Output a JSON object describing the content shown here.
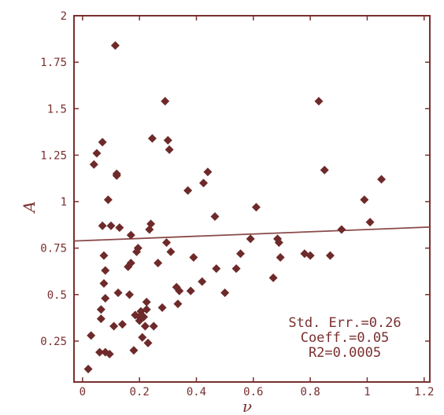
{
  "chart_data": {
    "type": "scatter",
    "xlabel": "ν",
    "ylabel": "A",
    "xlim": [
      -0.03,
      1.22
    ],
    "ylim": [
      0.03,
      2.0
    ],
    "xticks": [
      0,
      0.2,
      0.4,
      0.6,
      0.8,
      1,
      1.2
    ],
    "xtick_labels": [
      "0",
      "0.2",
      "0.4",
      "0.6",
      "0.8",
      "1",
      "1.2"
    ],
    "yticks": [
      0.25,
      0.5,
      0.75,
      1,
      1.25,
      1.5,
      1.75,
      2
    ],
    "ytick_labels": [
      "0.25",
      "0.5",
      "0.75",
      "1",
      "1.25",
      "1.5",
      "1.75",
      "2"
    ],
    "grid": false,
    "colors": {
      "points": "#6e2a2a",
      "line": "#8a4a4a",
      "frame": "#7a2f2f",
      "text": "#7a2f2f"
    },
    "points": [
      [
        0.02,
        0.1
      ],
      [
        0.03,
        0.28
      ],
      [
        0.04,
        1.2
      ],
      [
        0.05,
        1.26
      ],
      [
        0.06,
        0.19
      ],
      [
        0.065,
        0.42
      ],
      [
        0.065,
        0.37
      ],
      [
        0.07,
        1.32
      ],
      [
        0.07,
        0.87
      ],
      [
        0.075,
        0.56
      ],
      [
        0.075,
        0.71
      ],
      [
        0.08,
        0.63
      ],
      [
        0.08,
        0.48
      ],
      [
        0.08,
        0.19
      ],
      [
        0.09,
        1.01
      ],
      [
        0.095,
        0.18
      ],
      [
        0.1,
        0.87
      ],
      [
        0.11,
        0.33
      ],
      [
        0.115,
        1.84
      ],
      [
        0.12,
        1.15
      ],
      [
        0.12,
        1.14
      ],
      [
        0.125,
        0.51
      ],
      [
        0.13,
        0.86
      ],
      [
        0.14,
        0.34
      ],
      [
        0.16,
        0.65
      ],
      [
        0.165,
        0.5
      ],
      [
        0.17,
        0.67
      ],
      [
        0.17,
        0.82
      ],
      [
        0.18,
        0.2
      ],
      [
        0.185,
        0.39
      ],
      [
        0.19,
        0.73
      ],
      [
        0.195,
        0.75
      ],
      [
        0.2,
        0.38
      ],
      [
        0.2,
        0.36
      ],
      [
        0.205,
        0.41
      ],
      [
        0.21,
        0.27
      ],
      [
        0.215,
        0.38
      ],
      [
        0.22,
        0.33
      ],
      [
        0.225,
        0.42
      ],
      [
        0.225,
        0.46
      ],
      [
        0.23,
        0.24
      ],
      [
        0.235,
        0.85
      ],
      [
        0.24,
        0.88
      ],
      [
        0.245,
        1.34
      ],
      [
        0.25,
        0.33
      ],
      [
        0.265,
        0.67
      ],
      [
        0.28,
        0.43
      ],
      [
        0.29,
        1.54
      ],
      [
        0.295,
        0.78
      ],
      [
        0.3,
        1.33
      ],
      [
        0.305,
        1.28
      ],
      [
        0.31,
        0.73
      ],
      [
        0.33,
        0.54
      ],
      [
        0.335,
        0.45
      ],
      [
        0.34,
        0.52
      ],
      [
        0.37,
        1.06
      ],
      [
        0.38,
        0.52
      ],
      [
        0.39,
        0.7
      ],
      [
        0.42,
        0.57
      ],
      [
        0.425,
        1.1
      ],
      [
        0.44,
        1.16
      ],
      [
        0.465,
        0.92
      ],
      [
        0.47,
        0.64
      ],
      [
        0.5,
        0.51
      ],
      [
        0.54,
        0.64
      ],
      [
        0.555,
        0.72
      ],
      [
        0.59,
        0.8
      ],
      [
        0.61,
        0.97
      ],
      [
        0.67,
        0.59
      ],
      [
        0.685,
        0.8
      ],
      [
        0.69,
        0.78
      ],
      [
        0.695,
        0.7
      ],
      [
        0.78,
        0.72
      ],
      [
        0.8,
        0.71
      ],
      [
        0.83,
        1.54
      ],
      [
        0.85,
        1.17
      ],
      [
        0.87,
        0.71
      ],
      [
        0.91,
        0.85
      ],
      [
        0.99,
        1.01
      ],
      [
        1.01,
        0.89
      ],
      [
        1.05,
        1.12
      ]
    ],
    "fit_line": {
      "intercept": 0.79,
      "slope": 0.06,
      "x_range": [
        -0.03,
        1.22
      ]
    },
    "annotations": [
      "Std. Err.=0.26",
      "Coeff.=0.05",
      "R2=0.0005"
    ]
  }
}
